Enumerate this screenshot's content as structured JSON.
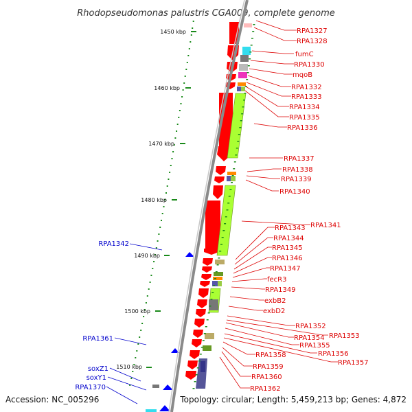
{
  "title": "Rhodopseudomonas palustris CGA009, complete genome",
  "footer": {
    "accession": "Accession: NC_005296",
    "topology": "Topology: circular; Length: 5,459,213 bp; Genes: 4,872"
  },
  "colors": {
    "forward_label": "#dd0000",
    "reverse_label": "#0000cc",
    "forward_gene": "#ff0000",
    "reverse_gene": "#0000ff",
    "tick": "#1a8a1a",
    "backbone": "#9a9a9a",
    "cog_green": "#aaff33"
  },
  "scale_ticks": [
    "1450 kbp",
    "1460 kbp",
    "1470 kbp",
    "1480 kbp",
    "1490 kbp",
    "1500 kbp",
    "1510 kbp"
  ],
  "right_labels": [
    {
      "name": "RPA1327",
      "strand": "forward"
    },
    {
      "name": "RPA1328",
      "strand": "forward"
    },
    {
      "name": "fumC",
      "strand": "forward"
    },
    {
      "name": "RPA1330",
      "strand": "forward"
    },
    {
      "name": "mqoB",
      "strand": "forward"
    },
    {
      "name": "RPA1332",
      "strand": "forward"
    },
    {
      "name": "RPA1333",
      "strand": "forward"
    },
    {
      "name": "RPA1334",
      "strand": "forward"
    },
    {
      "name": "RPA1335",
      "strand": "forward"
    },
    {
      "name": "RPA1336",
      "strand": "forward"
    },
    {
      "name": "RPA1337",
      "strand": "forward"
    },
    {
      "name": "RPA1338",
      "strand": "forward"
    },
    {
      "name": "RPA1339",
      "strand": "forward"
    },
    {
      "name": "RPA1340",
      "strand": "forward"
    },
    {
      "name": "RPA1341",
      "strand": "forward"
    },
    {
      "name": "RPA1343",
      "strand": "forward"
    },
    {
      "name": "RPA1344",
      "strand": "forward"
    },
    {
      "name": "RPA1345",
      "strand": "forward"
    },
    {
      "name": "RPA1346",
      "strand": "forward"
    },
    {
      "name": "RPA1347",
      "strand": "forward"
    },
    {
      "name": "fecR3",
      "strand": "forward"
    },
    {
      "name": "RPA1349",
      "strand": "forward"
    },
    {
      "name": "exbB2",
      "strand": "forward"
    },
    {
      "name": "exbD2",
      "strand": "forward"
    },
    {
      "name": "RPA1352",
      "strand": "forward"
    },
    {
      "name": "RPA1353",
      "strand": "forward"
    },
    {
      "name": "RPA1354",
      "strand": "forward"
    },
    {
      "name": "RPA1355",
      "strand": "forward"
    },
    {
      "name": "RPA1356",
      "strand": "forward"
    },
    {
      "name": "RPA1357",
      "strand": "forward"
    },
    {
      "name": "RPA1358",
      "strand": "forward"
    },
    {
      "name": "RPA1359",
      "strand": "forward"
    },
    {
      "name": "RPA1360",
      "strand": "forward"
    },
    {
      "name": "RPA1362",
      "strand": "forward"
    }
  ],
  "left_labels": [
    {
      "name": "RPA1342",
      "strand": "reverse"
    },
    {
      "name": "RPA1361",
      "strand": "reverse"
    },
    {
      "name": "soxZ1",
      "strand": "reverse"
    },
    {
      "name": "soxY1",
      "strand": "reverse"
    },
    {
      "name": "RPA1370",
      "strand": "reverse"
    }
  ]
}
